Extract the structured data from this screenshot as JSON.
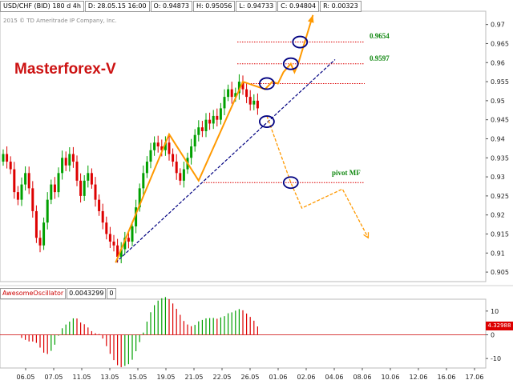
{
  "header": {
    "symbol": "USD/CHF (BID) 180 d 4h",
    "date": "D: 28.05.15 16:00",
    "open": "O: 0.94873",
    "high": "H: 0.95056",
    "low": "L: 0.94733",
    "close": "C: 0.94804",
    "range": "R: 0.00323"
  },
  "copyright": "2015 © TD Ameritrade IP Company, Inc.",
  "brand": "Masterforex-V",
  "oscillator": {
    "name": "AwesomeOscillator",
    "value": "0.0043299",
    "extra": "0",
    "current_badge": "4.32988"
  },
  "colors": {
    "bull": "#00a000",
    "bear": "#dd0000",
    "projection": "#ff9900",
    "trend": "#000080",
    "level": "#dd0000",
    "label": "#118811"
  },
  "chart_data": {
    "type": "candlestick",
    "x_labels": [
      "06.05",
      "07.05",
      "11.05",
      "13.05",
      "15.05",
      "19.05",
      "21.05",
      "22.05",
      "26.05",
      "01.06",
      "02.06",
      "04.06",
      "08.06",
      "10.06",
      "12.06",
      "16.06",
      "17.06"
    ],
    "y_ticks": [
      0.905,
      0.91,
      0.915,
      0.92,
      0.925,
      0.93,
      0.935,
      0.94,
      0.945,
      0.95,
      0.955,
      0.96,
      0.965,
      0.97
    ],
    "y_tick_labels": [
      "0.905",
      "0.91",
      "0.915",
      "0.92",
      "0.925",
      "0.93",
      "0.935",
      "0.94",
      "0.945",
      "0.95",
      "0.955",
      "0.96",
      "0.965",
      "0.97"
    ],
    "ylim": [
      0.9025,
      0.9735
    ],
    "price_path": [
      0.936,
      0.934,
      0.932,
      0.926,
      0.924,
      0.928,
      0.931,
      0.927,
      0.921,
      0.914,
      0.912,
      0.918,
      0.924,
      0.928,
      0.926,
      0.931,
      0.935,
      0.933,
      0.936,
      0.934,
      0.929,
      0.925,
      0.929,
      0.931,
      0.928,
      0.924,
      0.921,
      0.918,
      0.915,
      0.913,
      0.912,
      0.909,
      0.911,
      0.914,
      0.913,
      0.917,
      0.922,
      0.927,
      0.931,
      0.934,
      0.937,
      0.939,
      0.938,
      0.937,
      0.939,
      0.936,
      0.934,
      0.931,
      0.929,
      0.932,
      0.935,
      0.938,
      0.941,
      0.943,
      0.942,
      0.945,
      0.944,
      0.946,
      0.945,
      0.948,
      0.951,
      0.953,
      0.951,
      0.952,
      0.955,
      0.953,
      0.951,
      0.949,
      0.95,
      0.948
    ],
    "levels": [
      {
        "label": "0.9654",
        "value": 0.9654
      },
      {
        "label": "0.9597",
        "value": 0.9597
      },
      {
        "label": "",
        "value": 0.9545
      },
      {
        "label": "pivot MF",
        "value": 0.9285
      }
    ],
    "trendline": [
      {
        "index": 30.5,
        "price": 0.9075
      },
      {
        "index": 90,
        "price": 0.9608
      }
    ],
    "projection_up": [
      {
        "index": 30.5,
        "price": 0.9075
      },
      {
        "index": 45,
        "price": 0.9412
      },
      {
        "index": 53,
        "price": 0.929
      },
      {
        "index": 65,
        "price": 0.955
      },
      {
        "index": 71,
        "price": 0.953
      },
      {
        "index": 73,
        "price": 0.955
      },
      {
        "index": 74.5,
        "price": 0.9545
      },
      {
        "index": 76,
        "price": 0.9575
      },
      {
        "index": 78,
        "price": 0.9597
      },
      {
        "index": 79,
        "price": 0.9575
      },
      {
        "index": 80,
        "price": 0.9597
      },
      {
        "index": 84,
        "price": 0.9725
      }
    ],
    "projection_down": [
      {
        "index": 71.5,
        "price": 0.946
      },
      {
        "index": 78,
        "price": 0.9285
      },
      {
        "index": 81,
        "price": 0.9218
      },
      {
        "index": 92,
        "price": 0.9268
      },
      {
        "index": 99,
        "price": 0.914
      }
    ],
    "circles": [
      {
        "index": 71.5,
        "price": 0.9445
      },
      {
        "index": 71.5,
        "price": 0.9545
      },
      {
        "index": 78,
        "price": 0.9597
      },
      {
        "index": 80.5,
        "price": 0.9654
      },
      {
        "index": 78,
        "price": 0.9285
      }
    ],
    "oscillator": {
      "ylim": [
        -14,
        15
      ],
      "y_ticks": [
        -10,
        0,
        10
      ],
      "y_tick_labels": [
        "-10",
        "0",
        "10"
      ],
      "value_label": "4.32988"
    }
  }
}
